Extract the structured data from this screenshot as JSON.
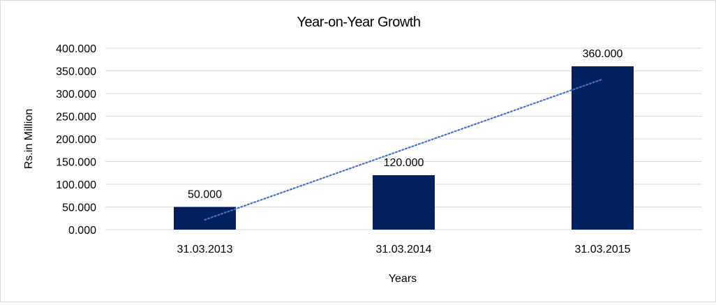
{
  "chart_data": {
    "type": "bar",
    "title": "Year-on-Year Growth",
    "xlabel": "Years",
    "ylabel": "Rs.in Million",
    "categories": [
      "31.03.2013",
      "31.03.2014",
      "31.03.2015"
    ],
    "values": [
      50,
      120,
      360
    ],
    "data_labels": [
      "50.000",
      "120.000",
      "360.000"
    ],
    "ylim": [
      0,
      400
    ],
    "yticks": [
      0,
      50,
      100,
      150,
      200,
      250,
      300,
      350,
      400
    ],
    "ytick_labels": [
      "0.000",
      "50.000",
      "100.000",
      "150.000",
      "200.000",
      "250.000",
      "300.000",
      "350.000",
      "400.000"
    ],
    "grid": true,
    "trendline": {
      "type": "linear",
      "style": "dotted",
      "color": "#4472C4"
    },
    "colors": {
      "bar": "#03205F",
      "grid": "#d9d9d9"
    }
  }
}
